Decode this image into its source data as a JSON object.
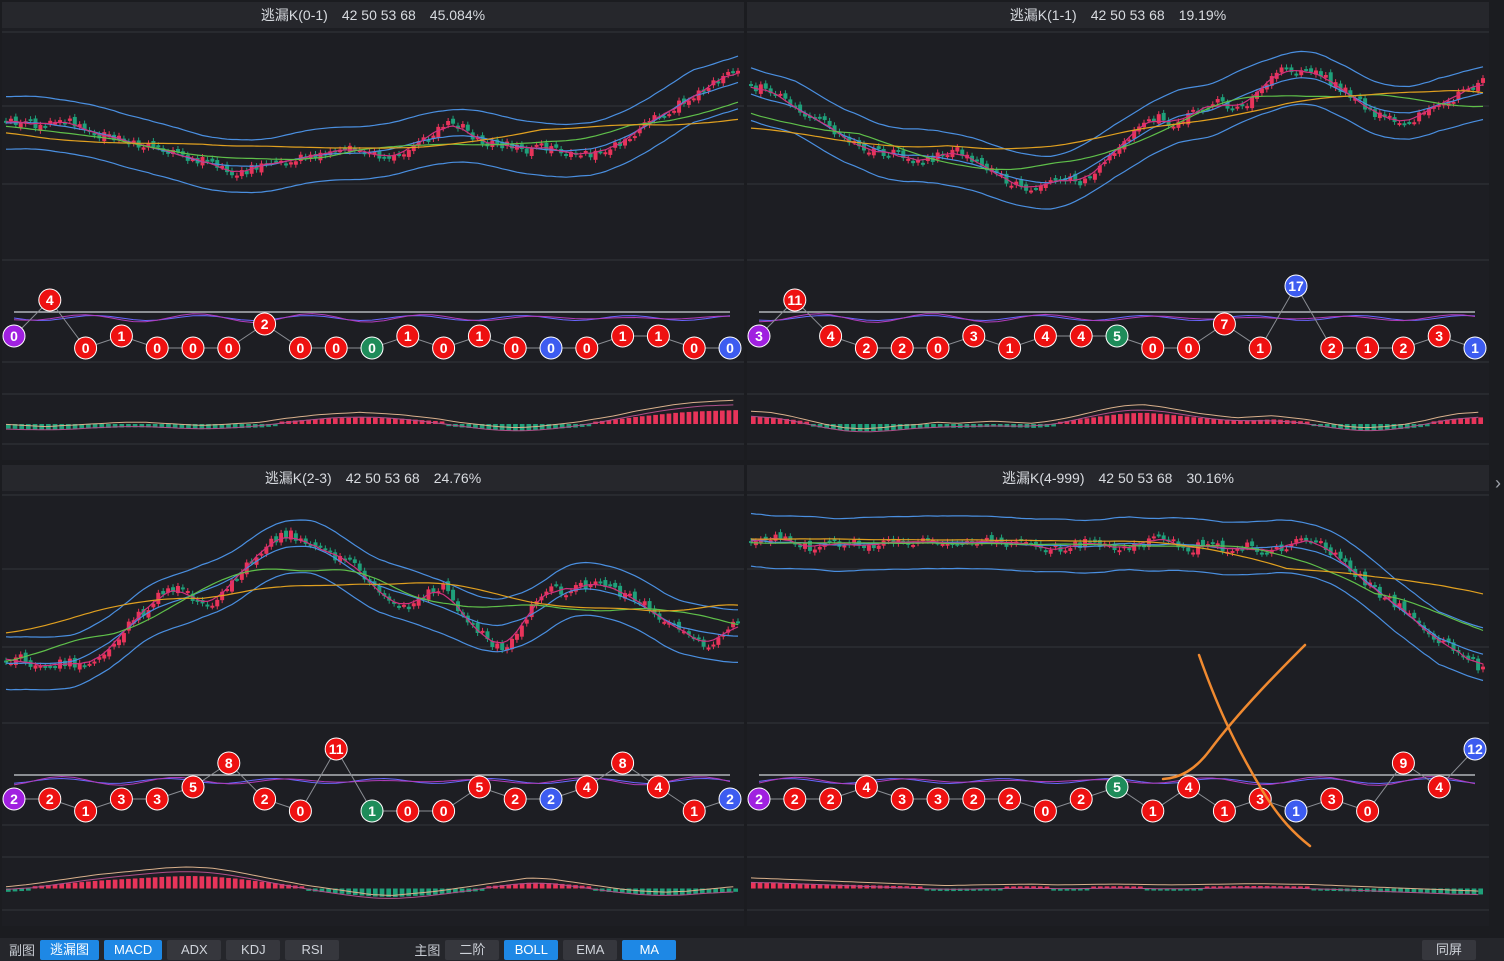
{
  "panels": [
    {
      "id": "p0",
      "title": "逃漏K(0-1)",
      "params": "42 50 53 68",
      "percent": "45.084%",
      "chart_data": {
        "type": "candlestick",
        "trend": [
          0.62,
          0.64,
          0.6,
          0.66,
          0.6,
          0.56,
          0.54,
          0.52,
          0.5,
          0.47,
          0.44,
          0.42,
          0.38,
          0.36,
          0.38,
          0.4,
          0.43,
          0.45,
          0.47,
          0.5,
          0.48,
          0.45,
          0.43,
          0.5,
          0.56,
          0.64,
          0.56,
          0.52,
          0.5,
          0.48,
          0.5,
          0.46,
          0.44,
          0.46,
          0.5,
          0.56,
          0.62,
          0.68,
          0.74,
          0.8,
          0.86,
          0.9
        ],
        "markers": [
          {
            "v": "0",
            "c": "purple",
            "level": "mid"
          },
          {
            "v": "4",
            "c": "red",
            "level": "high"
          },
          {
            "v": "0",
            "c": "red",
            "level": "low"
          },
          {
            "v": "1",
            "c": "red",
            "level": "mid"
          },
          {
            "v": "0",
            "c": "red",
            "level": "low"
          },
          {
            "v": "0",
            "c": "red",
            "level": "low"
          },
          {
            "v": "0",
            "c": "red",
            "level": "low"
          },
          {
            "v": "2",
            "c": "red",
            "level": "up"
          },
          {
            "v": "0",
            "c": "red",
            "level": "low"
          },
          {
            "v": "0",
            "c": "red",
            "level": "low"
          },
          {
            "v": "0",
            "c": "green",
            "level": "low"
          },
          {
            "v": "1",
            "c": "red",
            "level": "mid"
          },
          {
            "v": "0",
            "c": "red",
            "level": "low"
          },
          {
            "v": "1",
            "c": "red",
            "level": "mid"
          },
          {
            "v": "0",
            "c": "red",
            "level": "low"
          },
          {
            "v": "0",
            "c": "blue",
            "level": "low"
          },
          {
            "v": "0",
            "c": "red",
            "level": "low"
          },
          {
            "v": "1",
            "c": "red",
            "level": "mid"
          },
          {
            "v": "1",
            "c": "red",
            "level": "mid"
          },
          {
            "v": "0",
            "c": "red",
            "level": "low"
          },
          {
            "v": "0",
            "c": "blue",
            "level": "low"
          }
        ],
        "macd": [
          -0.2,
          -0.25,
          -0.3,
          -0.25,
          -0.2,
          -0.15,
          -0.1,
          -0.1,
          -0.15,
          -0.2,
          -0.25,
          -0.2,
          -0.15,
          -0.1,
          0.05,
          0.15,
          0.25,
          0.3,
          0.35,
          0.3,
          0.25,
          0.15,
          0.05,
          -0.1,
          -0.2,
          -0.3,
          -0.35,
          -0.3,
          -0.2,
          -0.1,
          0.05,
          0.2,
          0.4,
          0.55,
          0.7,
          0.8,
          0.85,
          0.9
        ]
      }
    },
    {
      "id": "p1",
      "title": "逃漏K(1-1)",
      "params": "42 50 53 68",
      "percent": "19.19%",
      "chart_data": {
        "type": "candlestick",
        "trend": [
          0.82,
          0.8,
          0.76,
          0.7,
          0.66,
          0.6,
          0.56,
          0.5,
          0.48,
          0.46,
          0.44,
          0.42,
          0.45,
          0.48,
          0.44,
          0.38,
          0.34,
          0.3,
          0.26,
          0.3,
          0.34,
          0.3,
          0.36,
          0.44,
          0.52,
          0.6,
          0.66,
          0.62,
          0.66,
          0.7,
          0.74,
          0.68,
          0.72,
          0.84,
          0.9,
          0.88,
          0.9,
          0.86,
          0.8,
          0.74,
          0.68,
          0.64,
          0.6,
          0.66,
          0.7,
          0.74,
          0.8,
          0.84
        ],
        "markers": [
          {
            "v": "3",
            "c": "purple",
            "level": "mid"
          },
          {
            "v": "11",
            "c": "red",
            "level": "high"
          },
          {
            "v": "4",
            "c": "red",
            "level": "mid"
          },
          {
            "v": "2",
            "c": "red",
            "level": "low"
          },
          {
            "v": "2",
            "c": "red",
            "level": "low"
          },
          {
            "v": "0",
            "c": "red",
            "level": "low"
          },
          {
            "v": "3",
            "c": "red",
            "level": "mid"
          },
          {
            "v": "1",
            "c": "red",
            "level": "low"
          },
          {
            "v": "4",
            "c": "red",
            "level": "mid"
          },
          {
            "v": "4",
            "c": "red",
            "level": "mid"
          },
          {
            "v": "5",
            "c": "green",
            "level": "mid"
          },
          {
            "v": "0",
            "c": "red",
            "level": "low"
          },
          {
            "v": "0",
            "c": "red",
            "level": "low"
          },
          {
            "v": "7",
            "c": "red",
            "level": "up"
          },
          {
            "v": "1",
            "c": "red",
            "level": "low"
          },
          {
            "v": "17",
            "c": "blue",
            "level": "top"
          },
          {
            "v": "2",
            "c": "red",
            "level": "low"
          },
          {
            "v": "1",
            "c": "red",
            "level": "low"
          },
          {
            "v": "2",
            "c": "red",
            "level": "low"
          },
          {
            "v": "3",
            "c": "red",
            "level": "mid"
          },
          {
            "v": "1",
            "c": "blue",
            "level": "low"
          }
        ],
        "macd": [
          0.4,
          0.35,
          0.2,
          0,
          -0.2,
          -0.35,
          -0.4,
          -0.35,
          -0.25,
          -0.2,
          -0.1,
          -0.15,
          -0.1,
          -0.05,
          -0.1,
          -0.15,
          -0.05,
          0.1,
          0.3,
          0.5,
          0.65,
          0.7,
          0.6,
          0.45,
          0.3,
          0.2,
          0.1,
          0.15,
          0.2,
          0.1,
          0,
          -0.15,
          -0.3,
          -0.35,
          -0.3,
          -0.2,
          -0.05,
          0.15,
          0.3,
          0.35
        ]
      }
    },
    {
      "id": "p2",
      "title": "逃漏K(2-3)",
      "params": "42 50 53 68",
      "percent": "24.76%",
      "chart_data": {
        "type": "candlestick",
        "trend": [
          0.22,
          0.24,
          0.2,
          0.2,
          0.22,
          0.18,
          0.26,
          0.32,
          0.42,
          0.5,
          0.58,
          0.62,
          0.56,
          0.52,
          0.6,
          0.7,
          0.78,
          0.86,
          0.9,
          0.88,
          0.84,
          0.78,
          0.76,
          0.68,
          0.6,
          0.52,
          0.5,
          0.58,
          0.62,
          0.5,
          0.42,
          0.34,
          0.26,
          0.38,
          0.56,
          0.64,
          0.58,
          0.62,
          0.66,
          0.6,
          0.56,
          0.52,
          0.46,
          0.4,
          0.36,
          0.3,
          0.36,
          0.44
        ],
        "markers": [
          {
            "v": "2",
            "c": "purple",
            "level": "mid"
          },
          {
            "v": "2",
            "c": "red",
            "level": "mid"
          },
          {
            "v": "1",
            "c": "red",
            "level": "low"
          },
          {
            "v": "3",
            "c": "red",
            "level": "mid"
          },
          {
            "v": "3",
            "c": "red",
            "level": "mid"
          },
          {
            "v": "5",
            "c": "red",
            "level": "up"
          },
          {
            "v": "8",
            "c": "red",
            "level": "high"
          },
          {
            "v": "2",
            "c": "red",
            "level": "mid"
          },
          {
            "v": "0",
            "c": "red",
            "level": "low"
          },
          {
            "v": "11",
            "c": "red",
            "level": "top"
          },
          {
            "v": "1",
            "c": "green",
            "level": "low"
          },
          {
            "v": "0",
            "c": "red",
            "level": "low"
          },
          {
            "v": "0",
            "c": "red",
            "level": "low"
          },
          {
            "v": "5",
            "c": "red",
            "level": "up"
          },
          {
            "v": "2",
            "c": "red",
            "level": "mid"
          },
          {
            "v": "2",
            "c": "blue",
            "level": "mid"
          },
          {
            "v": "4",
            "c": "red",
            "level": "up"
          },
          {
            "v": "8",
            "c": "red",
            "level": "high"
          },
          {
            "v": "4",
            "c": "red",
            "level": "up"
          },
          {
            "v": "1",
            "c": "red",
            "level": "low"
          },
          {
            "v": "2",
            "c": "blue",
            "level": "mid"
          }
        ],
        "macd": [
          -0.1,
          0,
          0.15,
          0.3,
          0.45,
          0.55,
          0.65,
          0.75,
          0.8,
          0.75,
          0.6,
          0.4,
          0.2,
          0,
          -0.15,
          -0.3,
          -0.45,
          -0.5,
          -0.4,
          -0.3,
          -0.15,
          0,
          0.15,
          0.3,
          0.25,
          0.1,
          -0.05,
          -0.2,
          -0.3,
          -0.35,
          -0.3,
          -0.2,
          -0.1
        ]
      }
    },
    {
      "id": "p3",
      "title": "逃漏K(4-999)",
      "params": "42 50 53 68",
      "percent": "30.16%",
      "chart_data": {
        "type": "candlestick",
        "trend": [
          0.86,
          0.88,
          0.9,
          0.84,
          0.82,
          0.84,
          0.86,
          0.82,
          0.84,
          0.86,
          0.84,
          0.86,
          0.85,
          0.87,
          0.86,
          0.85,
          0.84,
          0.86,
          0.82,
          0.82,
          0.84,
          0.86,
          0.84,
          0.82,
          0.84,
          0.88,
          0.86,
          0.82,
          0.84,
          0.82,
          0.84,
          0.82,
          0.8,
          0.84,
          0.88,
          0.86,
          0.78,
          0.7,
          0.62,
          0.56,
          0.5,
          0.42,
          0.36,
          0.3,
          0.24,
          0.18
        ],
        "markers": [
          {
            "v": "2",
            "c": "purple",
            "level": "mid"
          },
          {
            "v": "2",
            "c": "red",
            "level": "mid"
          },
          {
            "v": "2",
            "c": "red",
            "level": "mid"
          },
          {
            "v": "4",
            "c": "red",
            "level": "up"
          },
          {
            "v": "3",
            "c": "red",
            "level": "mid"
          },
          {
            "v": "3",
            "c": "red",
            "level": "mid"
          },
          {
            "v": "2",
            "c": "red",
            "level": "mid"
          },
          {
            "v": "2",
            "c": "red",
            "level": "mid"
          },
          {
            "v": "0",
            "c": "red",
            "level": "low"
          },
          {
            "v": "2",
            "c": "red",
            "level": "mid"
          },
          {
            "v": "5",
            "c": "green",
            "level": "up"
          },
          {
            "v": "1",
            "c": "red",
            "level": "low"
          },
          {
            "v": "4",
            "c": "red",
            "level": "up"
          },
          {
            "v": "1",
            "c": "red",
            "level": "low"
          },
          {
            "v": "3",
            "c": "red",
            "level": "mid"
          },
          {
            "v": "1",
            "c": "blue",
            "level": "low"
          },
          {
            "v": "3",
            "c": "red",
            "level": "mid"
          },
          {
            "v": "0",
            "c": "red",
            "level": "low"
          },
          {
            "v": "9",
            "c": "red",
            "level": "high"
          },
          {
            "v": "4",
            "c": "red",
            "level": "up"
          },
          {
            "v": "12",
            "c": "blue",
            "level": "top"
          }
        ],
        "macd": [
          0.3,
          0.25,
          0.2,
          0.15,
          0.1,
          0.05,
          0,
          -0.05,
          -0.02,
          0,
          0.02,
          -0.02,
          0,
          0.02,
          0,
          -0.02,
          0,
          0.02,
          0.04,
          0.02,
          0,
          -0.05,
          -0.1,
          -0.15,
          -0.2,
          -0.25,
          -0.3
        ]
      }
    }
  ],
  "bottombar": {
    "sub_label": "副图",
    "sub_buttons": [
      {
        "label": "逃漏图",
        "active": true
      },
      {
        "label": "MACD",
        "active": true
      },
      {
        "label": "ADX",
        "active": false
      },
      {
        "label": "KDJ",
        "active": false
      },
      {
        "label": "RSI",
        "active": false
      }
    ],
    "main_label": "主图",
    "main_buttons": [
      {
        "label": "二阶",
        "active": false
      },
      {
        "label": "BOLL",
        "active": true
      },
      {
        "label": "EMA",
        "active": false
      },
      {
        "label": "MA",
        "active": true
      }
    ],
    "same_screen": "同屏"
  },
  "side_arrow": "›",
  "colors": {
    "up": "#e8345a",
    "down": "#1fa07a",
    "boll": "#4a8fe0",
    "ma_pink": "#d0317e",
    "ma_green": "#5fbf4a",
    "ma_orange": "#e0a020",
    "marker_red": "#ee1111",
    "marker_blue": "#3d5cf0",
    "marker_purple": "#a020e0",
    "marker_green": "#1e8c5a",
    "annotation": "#f08a30",
    "accent": "#1e88e5"
  }
}
